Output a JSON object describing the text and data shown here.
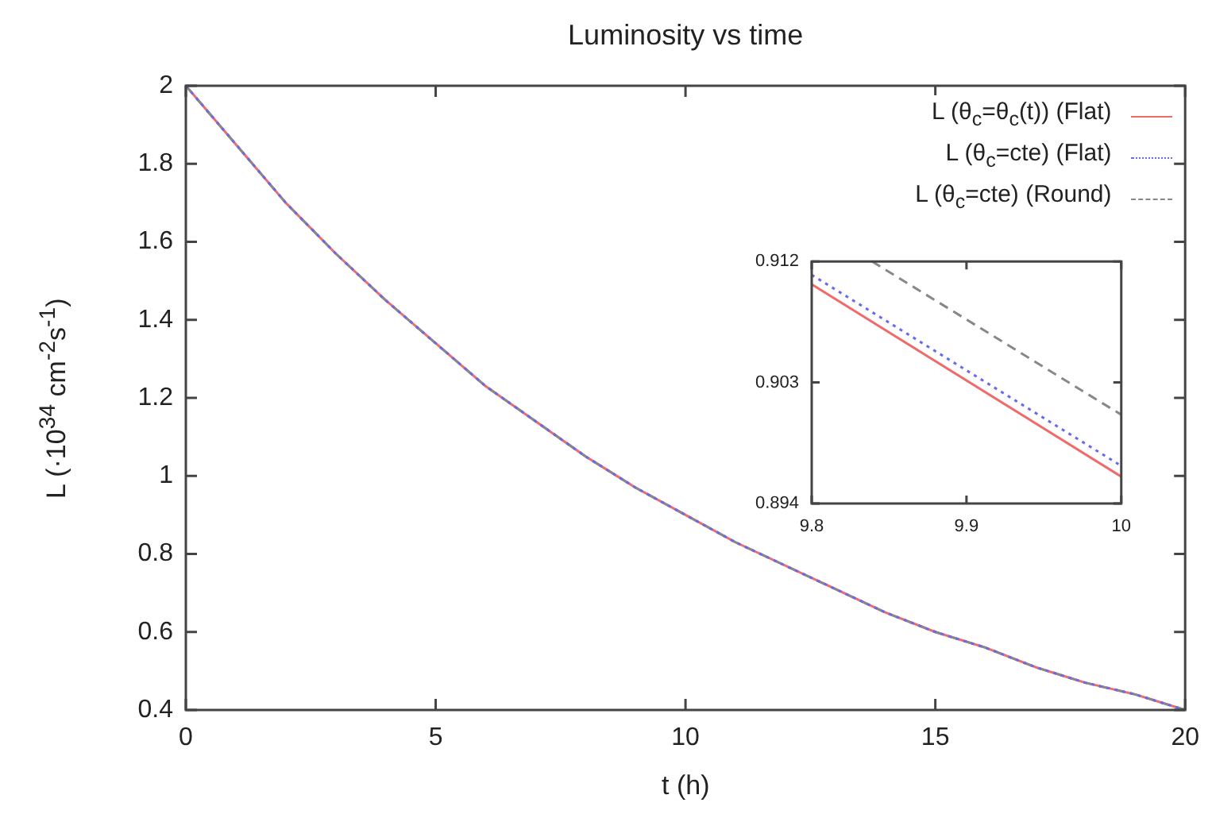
{
  "chart_data": [
    {
      "type": "line",
      "title": "Luminosity vs time",
      "xlabel": "t (h)",
      "ylabel": "L (·10$^{34}$ cm$^{-2}$s$^{-1}$)",
      "x": [
        0,
        1,
        2,
        3,
        4,
        5,
        6,
        7,
        8,
        9,
        10,
        11,
        12,
        13,
        14,
        15,
        16,
        17,
        18,
        19,
        20
      ],
      "xlim": [
        0,
        20
      ],
      "xticks": [
        0,
        5,
        10,
        15,
        20
      ],
      "ylim": [
        0.4,
        2
      ],
      "yticks": [
        0.4,
        0.6,
        0.8,
        1,
        1.2,
        1.4,
        1.6,
        1.8,
        2
      ],
      "grid": false,
      "legend": "top right",
      "marker": "none",
      "series": [
        {
          "name": "L (θ$_{c}$=θ$_{c}$(t)) (Flat)",
          "color": "#f06a6a",
          "line_style": "solid",
          "values": [
            2.0,
            1.85,
            1.7,
            1.57,
            1.45,
            1.34,
            1.23,
            1.14,
            1.05,
            0.97,
            0.9,
            0.83,
            0.77,
            0.71,
            0.65,
            0.6,
            0.56,
            0.51,
            0.47,
            0.44,
            0.4
          ]
        },
        {
          "name": "L (θ$_{c}$=cte) (Flat)",
          "color": "#6a6af0",
          "line_style": "dotted",
          "values": [
            2.0,
            1.85,
            1.7,
            1.57,
            1.45,
            1.34,
            1.23,
            1.14,
            1.05,
            0.97,
            0.9,
            0.83,
            0.77,
            0.71,
            0.65,
            0.6,
            0.56,
            0.51,
            0.47,
            0.44,
            0.4
          ]
        },
        {
          "name": "L (θ$_{c}$=cte) (Round)",
          "color": "#888888",
          "line_style": "dashed",
          "values": [
            2.0,
            1.85,
            1.7,
            1.57,
            1.45,
            1.34,
            1.23,
            1.14,
            1.05,
            0.97,
            0.9,
            0.83,
            0.77,
            0.71,
            0.65,
            0.6,
            0.56,
            0.51,
            0.47,
            0.44,
            0.4
          ]
        }
      ]
    },
    {
      "type": "line",
      "xlim": [
        9.8,
        10
      ],
      "xticks": [
        9.8,
        9.9,
        10
      ],
      "ylim": [
        0.894,
        0.912
      ],
      "yticks": [
        0.894,
        0.903,
        0.912
      ],
      "grid": false,
      "marker": "none",
      "series": [
        {
          "color": "#f06a6a",
          "line_style": "solid",
          "x": [
            9.8,
            10
          ],
          "values": [
            0.9103,
            0.896
          ]
        },
        {
          "color": "#6a6af0",
          "line_style": "dotted",
          "x": [
            9.8,
            10
          ],
          "values": [
            0.911,
            0.8968
          ]
        },
        {
          "color": "#888888",
          "line_style": "dashed",
          "x": [
            9.839,
            10
          ],
          "values": [
            0.912,
            0.9006
          ]
        }
      ]
    }
  ]
}
